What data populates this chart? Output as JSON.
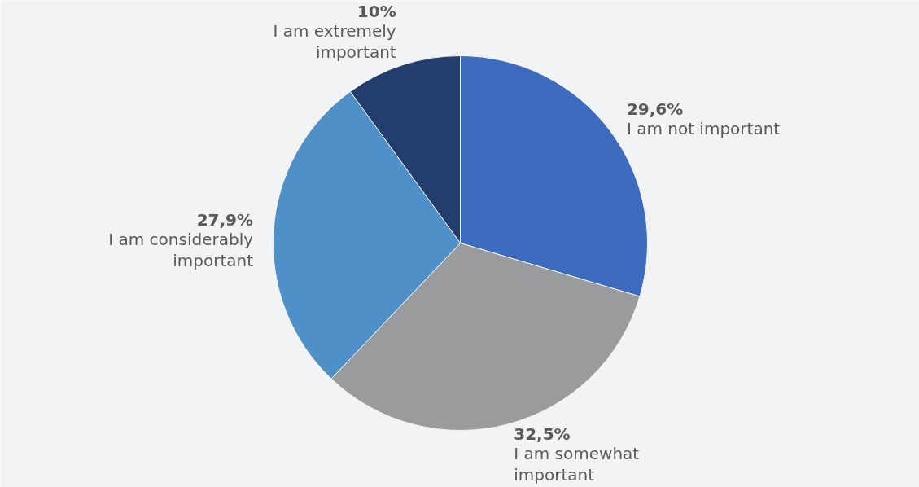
{
  "chart_data": {
    "type": "pie",
    "categories": [
      "I am not important",
      "I am somewhat important",
      "I am considerably important",
      "I am extremely important"
    ],
    "values": [
      29.6,
      32.5,
      27.9,
      10
    ],
    "colors": [
      "#3d6bbd",
      "#9a9b9d",
      "#5090c8",
      "#233d6e"
    ],
    "value_labels": [
      "29,6%",
      "32,5%",
      "27,9%",
      "10%"
    ]
  }
}
